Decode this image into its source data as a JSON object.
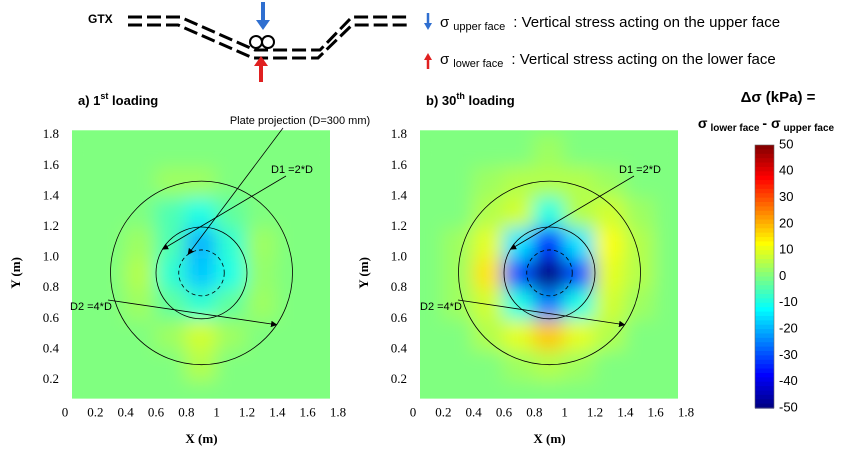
{
  "schematic": {
    "label": "GTX",
    "legend": [
      {
        "symbol": "σ",
        "sub": "upper face",
        "text": ": Vertical stress acting on the upper face",
        "color": "#2f6fd0"
      },
      {
        "symbol": "σ",
        "sub": "lower face",
        "text": ": Vertical stress acting on the lower face",
        "color": "#e02020"
      }
    ]
  },
  "colorbar": {
    "title": "Δσ (kPa) =",
    "formula": [
      "σ",
      "lower face",
      "- σ",
      "upper face"
    ],
    "colormap": "jet",
    "zlim": [
      -50,
      50
    ],
    "ticks": [
      50,
      40,
      30,
      20,
      10,
      0,
      -10,
      -20,
      -30,
      -40,
      -50
    ]
  },
  "chart_data": [
    {
      "type": "heatmap",
      "title": [
        "a) 1",
        "st",
        " loading"
      ],
      "xlabel": "X (m)",
      "ylabel": "Y (m)",
      "xlim": [
        0,
        1.8
      ],
      "ylim": [
        0,
        1.8
      ],
      "xticks": [
        0,
        0.2,
        0.4,
        0.6,
        0.8,
        1,
        1.2,
        1.4,
        1.6,
        1.8
      ],
      "yticks": [
        0.2,
        0.4,
        0.6,
        0.8,
        {
          "value": 1,
          "label": "1.0"
        },
        1.2,
        1.4,
        1.6,
        1.8
      ],
      "x": [
        0.1,
        0.3,
        0.5,
        0.7,
        0.9,
        1.1,
        1.3,
        1.5,
        1.7
      ],
      "y": [
        0.1,
        0.3,
        0.5,
        0.7,
        0.9,
        1.1,
        1.3,
        1.5,
        1.7
      ],
      "z": [
        [
          0,
          0,
          0,
          0,
          0,
          0,
          0,
          0,
          0
        ],
        [
          0,
          0,
          0,
          0,
          5,
          0,
          0,
          0,
          0
        ],
        [
          0,
          0,
          0,
          3,
          8,
          3,
          0,
          0,
          0
        ],
        [
          0,
          0,
          3,
          -3,
          -8,
          -3,
          3,
          0,
          0
        ],
        [
          0,
          0,
          5,
          -8,
          -18,
          -10,
          2,
          0,
          0
        ],
        [
          0,
          0,
          3,
          -5,
          -20,
          -8,
          3,
          0,
          0
        ],
        [
          0,
          0,
          0,
          -5,
          -10,
          -3,
          0,
          0,
          0
        ],
        [
          0,
          0,
          0,
          3,
          3,
          0,
          0,
          0,
          0
        ],
        [
          0,
          0,
          0,
          0,
          0,
          0,
          0,
          0,
          0
        ]
      ],
      "center": [
        0.9,
        0.9
      ],
      "circles": [
        {
          "label": "Plate projection (D=300 mm)",
          "r": 0.15,
          "dashed": true
        },
        {
          "label": "D1 =2*D",
          "r": 0.3
        },
        {
          "label": "D2 =4*D",
          "r": 0.6
        }
      ]
    },
    {
      "type": "heatmap",
      "title": [
        "b) 30",
        "th",
        " loading"
      ],
      "xlabel": "X (m)",
      "ylabel": "Y (m)",
      "xlim": [
        0,
        1.8
      ],
      "ylim": [
        0,
        1.8
      ],
      "xticks": [
        0,
        0.2,
        0.4,
        0.6,
        0.8,
        1,
        1.2,
        1.4,
        1.6,
        1.8
      ],
      "yticks": [
        0.2,
        0.4,
        0.6,
        0.8,
        {
          "value": 1,
          "label": "1.0"
        },
        1.2,
        1.4,
        1.6,
        1.8
      ],
      "x": [
        0.1,
        0.3,
        0.5,
        0.7,
        0.9,
        1.1,
        1.3,
        1.5,
        1.7
      ],
      "y": [
        0.1,
        0.3,
        0.5,
        0.7,
        0.9,
        1.1,
        1.3,
        1.5,
        1.7
      ],
      "z": [
        [
          0,
          0,
          0,
          0,
          0,
          0,
          0,
          0,
          0
        ],
        [
          0,
          0,
          0,
          3,
          5,
          3,
          0,
          0,
          0
        ],
        [
          0,
          0,
          5,
          10,
          18,
          10,
          5,
          0,
          0
        ],
        [
          0,
          3,
          8,
          -10,
          -25,
          -10,
          8,
          3,
          0
        ],
        [
          0,
          3,
          15,
          -30,
          -50,
          -30,
          10,
          5,
          0
        ],
        [
          0,
          3,
          10,
          -15,
          -35,
          -15,
          12,
          5,
          0
        ],
        [
          0,
          0,
          5,
          8,
          -10,
          5,
          8,
          3,
          0
        ],
        [
          0,
          0,
          3,
          5,
          5,
          5,
          3,
          0,
          0
        ],
        [
          0,
          0,
          0,
          0,
          3,
          0,
          0,
          0,
          0
        ]
      ],
      "center": [
        0.9,
        0.9
      ],
      "circles": [
        {
          "label": null,
          "r": 0.15,
          "dashed": true
        },
        {
          "label": "D1 =2*D",
          "r": 0.3
        },
        {
          "label": "D2 =4*D",
          "r": 0.6
        }
      ]
    }
  ]
}
